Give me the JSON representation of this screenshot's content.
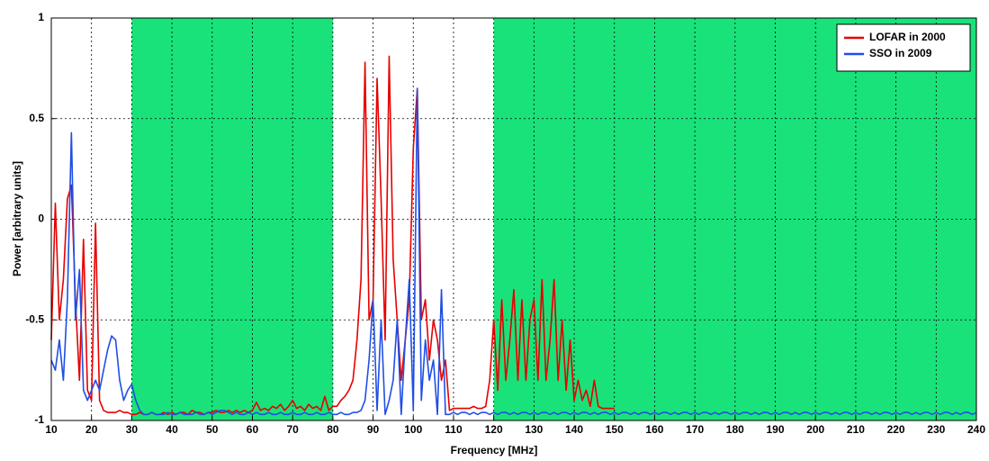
{
  "chart_data": {
    "type": "line",
    "x_label": "Frequency [MHz]",
    "y_label": "Power [arbitrary units]",
    "xlim": [
      10,
      240
    ],
    "ylim": [
      -1,
      1
    ],
    "xticks": [
      10,
      20,
      30,
      40,
      50,
      60,
      70,
      80,
      90,
      100,
      110,
      120,
      130,
      140,
      150,
      160,
      170,
      180,
      190,
      200,
      210,
      220,
      230,
      240
    ],
    "yticks": [
      -1,
      -0.5,
      0,
      0.5,
      1
    ],
    "grid": true,
    "legend": "upper right",
    "shaded_regions": [
      {
        "from": 30,
        "to": 80
      },
      {
        "from": 120,
        "to": 240
      }
    ],
    "shade_color": "#19e27a",
    "x": [
      10,
      11,
      12,
      13,
      14,
      15,
      16,
      17,
      18,
      19,
      20,
      21,
      22,
      23,
      24,
      25,
      26,
      27,
      28,
      29,
      30,
      31,
      32,
      33,
      34,
      35,
      36,
      37,
      38,
      39,
      40,
      41,
      42,
      43,
      44,
      45,
      46,
      47,
      48,
      49,
      50,
      51,
      52,
      53,
      54,
      55,
      56,
      57,
      58,
      59,
      60,
      61,
      62,
      63,
      64,
      65,
      66,
      67,
      68,
      69,
      70,
      71,
      72,
      73,
      74,
      75,
      76,
      77,
      78,
      79,
      80,
      81,
      82,
      83,
      84,
      85,
      86,
      87,
      88,
      89,
      90,
      91,
      92,
      93,
      94,
      95,
      96,
      97,
      98,
      99,
      100,
      101,
      102,
      103,
      104,
      105,
      106,
      107,
      108,
      109,
      110,
      111,
      112,
      113,
      114,
      115,
      116,
      117,
      118,
      119,
      120,
      121,
      122,
      123,
      124,
      125,
      126,
      127,
      128,
      129,
      130,
      131,
      132,
      133,
      134,
      135,
      136,
      137,
      138,
      139,
      140,
      141,
      142,
      143,
      144,
      145,
      146,
      147,
      148,
      149,
      150,
      151,
      152,
      153,
      154,
      155,
      156,
      157,
      158,
      159,
      160,
      161,
      162,
      163,
      164,
      165,
      166,
      167,
      168,
      169,
      170,
      171,
      172,
      173,
      174,
      175,
      176,
      177,
      178,
      179,
      180,
      181,
      182,
      183,
      184,
      185,
      186,
      187,
      188,
      189,
      190,
      191,
      192,
      193,
      194,
      195,
      196,
      197,
      198,
      199,
      200,
      201,
      202,
      203,
      204,
      205,
      206,
      207,
      208,
      209,
      210,
      211,
      212,
      213,
      214,
      215,
      216,
      217,
      218,
      219,
      220,
      221,
      222,
      223,
      224,
      225,
      226,
      227,
      228,
      229,
      230,
      231,
      232,
      233,
      234,
      235,
      236,
      237,
      238,
      239,
      240
    ],
    "series": [
      {
        "name": "LOFAR in 2000",
        "color": "#e60000",
        "values": [
          -0.6,
          0.08,
          -0.5,
          -0.3,
          0.1,
          0.17,
          -0.4,
          -0.8,
          -0.1,
          -0.85,
          -0.9,
          -0.02,
          -0.9,
          -0.95,
          -0.96,
          -0.96,
          -0.96,
          -0.95,
          -0.96,
          -0.96,
          -0.97,
          -0.97,
          -0.96,
          -0.97,
          -0.97,
          -0.96,
          -0.97,
          -0.97,
          -0.96,
          -0.97,
          -0.96,
          -0.97,
          -0.96,
          -0.96,
          -0.97,
          -0.95,
          -0.96,
          -0.96,
          -0.97,
          -0.96,
          -0.96,
          -0.95,
          -0.96,
          -0.96,
          -0.95,
          -0.96,
          -0.95,
          -0.96,
          -0.95,
          -0.96,
          -0.95,
          -0.91,
          -0.95,
          -0.94,
          -0.95,
          -0.93,
          -0.94,
          -0.92,
          -0.95,
          -0.93,
          -0.9,
          -0.94,
          -0.93,
          -0.95,
          -0.92,
          -0.94,
          -0.93,
          -0.95,
          -0.88,
          -0.95,
          -0.93,
          -0.93,
          -0.9,
          -0.88,
          -0.85,
          -0.8,
          -0.6,
          -0.3,
          0.78,
          -0.5,
          -0.4,
          0.7,
          0.1,
          -0.6,
          0.81,
          -0.2,
          -0.5,
          -0.8,
          -0.6,
          -0.4,
          0.35,
          0.65,
          -0.5,
          -0.4,
          -0.7,
          -0.5,
          -0.6,
          -0.8,
          -0.7,
          -0.95,
          -0.94,
          -0.94,
          -0.94,
          -0.94,
          -0.94,
          -0.93,
          -0.94,
          -0.94,
          -0.93,
          -0.8,
          -0.5,
          -0.85,
          -0.4,
          -0.8,
          -0.6,
          -0.35,
          -0.8,
          -0.4,
          -0.8,
          -0.5,
          -0.4,
          -0.8,
          -0.3,
          -0.8,
          -0.6,
          -0.3,
          -0.8,
          -0.5,
          -0.85,
          -0.6,
          -0.9,
          -0.8,
          -0.9,
          -0.85,
          -0.93,
          -0.8,
          -0.93,
          -0.94,
          -0.94,
          -0.94,
          -0.94,
          null,
          null,
          null,
          null,
          null,
          null,
          null,
          null,
          null,
          null,
          null,
          null,
          null,
          null,
          null,
          null,
          null,
          null,
          null,
          null,
          null,
          null,
          null,
          null,
          null,
          null,
          null,
          null,
          null,
          null,
          null,
          null,
          null,
          null,
          null,
          null,
          null,
          null,
          null,
          null,
          null,
          null,
          null,
          null,
          null,
          null,
          null,
          null,
          null,
          null,
          null,
          null,
          null,
          null,
          null,
          null,
          null,
          null,
          null,
          null,
          null,
          null,
          null,
          null,
          null,
          null,
          null,
          null,
          null,
          null,
          null,
          null,
          null,
          null,
          null,
          null,
          null,
          null,
          null,
          null,
          null,
          null,
          null,
          null,
          null,
          null,
          null,
          null,
          null,
          null
        ]
      },
      {
        "name": "SSO in 2009",
        "color": "#1e4fe6",
        "values": [
          -0.7,
          -0.75,
          -0.6,
          -0.8,
          -0.4,
          0.43,
          -0.5,
          -0.25,
          -0.85,
          -0.9,
          -0.85,
          -0.8,
          -0.85,
          -0.75,
          -0.65,
          -0.58,
          -0.6,
          -0.8,
          -0.9,
          -0.85,
          -0.82,
          -0.9,
          -0.95,
          -0.97,
          -0.97,
          -0.96,
          -0.97,
          -0.97,
          -0.97,
          -0.96,
          -0.97,
          -0.97,
          -0.96,
          -0.97,
          -0.97,
          -0.97,
          -0.96,
          -0.97,
          -0.97,
          -0.96,
          -0.97,
          -0.96,
          -0.95,
          -0.95,
          -0.96,
          -0.97,
          -0.96,
          -0.97,
          -0.97,
          -0.96,
          -0.97,
          -0.96,
          -0.97,
          -0.97,
          -0.96,
          -0.97,
          -0.97,
          -0.96,
          -0.97,
          -0.97,
          -0.96,
          -0.97,
          -0.97,
          -0.96,
          -0.97,
          -0.97,
          -0.96,
          -0.97,
          -0.97,
          -0.96,
          -0.97,
          -0.97,
          -0.96,
          -0.97,
          -0.97,
          -0.96,
          -0.96,
          -0.95,
          -0.9,
          -0.7,
          -0.4,
          -0.95,
          -0.5,
          -0.97,
          -0.9,
          -0.8,
          -0.5,
          -0.97,
          -0.6,
          -0.3,
          -0.95,
          0.65,
          -0.9,
          -0.6,
          -0.8,
          -0.7,
          -0.97,
          -0.35,
          -0.97,
          -0.97,
          -0.96,
          -0.97,
          -0.96,
          -0.96,
          -0.97,
          -0.96,
          -0.97,
          -0.96,
          -0.96,
          -0.97,
          -0.96,
          -0.97,
          -0.96,
          -0.96,
          -0.97,
          -0.96,
          -0.97,
          -0.96,
          -0.96,
          -0.97,
          -0.96,
          -0.97,
          -0.96,
          -0.96,
          -0.97,
          -0.96,
          -0.97,
          -0.96,
          -0.96,
          -0.97,
          -0.96,
          -0.97,
          -0.96,
          -0.96,
          -0.97,
          -0.96,
          -0.97,
          -0.96,
          -0.96,
          -0.97,
          -0.96,
          -0.97,
          -0.96,
          -0.96,
          -0.97,
          -0.96,
          -0.97,
          -0.96,
          -0.96,
          -0.97,
          -0.96,
          -0.97,
          -0.96,
          -0.96,
          -0.97,
          -0.96,
          -0.97,
          -0.96,
          -0.96,
          -0.97,
          -0.96,
          -0.97,
          -0.96,
          -0.96,
          -0.97,
          -0.96,
          -0.97,
          -0.96,
          -0.96,
          -0.97,
          -0.96,
          -0.97,
          -0.96,
          -0.96,
          -0.97,
          -0.96,
          -0.97,
          -0.96,
          -0.96,
          -0.97,
          -0.96,
          -0.97,
          -0.96,
          -0.96,
          -0.97,
          -0.96,
          -0.97,
          -0.96,
          -0.96,
          -0.97,
          -0.96,
          -0.97,
          -0.96,
          -0.96,
          -0.97,
          -0.96,
          -0.97,
          -0.96,
          -0.96,
          -0.97,
          -0.96,
          -0.97,
          -0.96,
          -0.96,
          -0.97,
          -0.96,
          -0.97,
          -0.96,
          -0.96,
          -0.97,
          -0.96,
          -0.97,
          -0.96,
          -0.96,
          -0.97,
          -0.96,
          -0.97,
          -0.96,
          -0.96,
          -0.97,
          -0.96,
          -0.97,
          -0.96,
          -0.96,
          -0.97,
          -0.96,
          -0.97,
          -0.96,
          -0.96,
          -0.97,
          -0.96
        ]
      }
    ]
  }
}
